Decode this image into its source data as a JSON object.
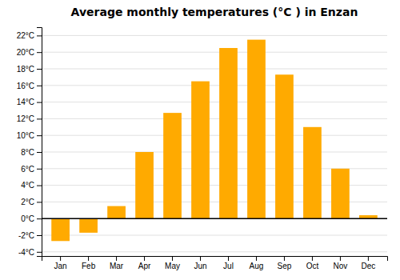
{
  "chart_data": {
    "type": "bar",
    "title": "Average monthly temperatures (°C ) in Enzan",
    "categories": [
      "Jan",
      "Feb",
      "Mar",
      "Apr",
      "May",
      "Jun",
      "Jul",
      "Aug",
      "Sep",
      "Oct",
      "Nov",
      "Dec"
    ],
    "values": [
      -2.7,
      -1.7,
      1.5,
      8.0,
      12.7,
      16.5,
      20.5,
      21.5,
      17.3,
      11.0,
      6.0,
      0.4
    ],
    "color": "#FFAA00",
    "ylim": [
      -4.5,
      23
    ],
    "yticks": [
      {
        "value": -4,
        "label": "-4°C"
      },
      {
        "value": -2,
        "label": "-2°C"
      },
      {
        "value": 0,
        "label": "0°C"
      },
      {
        "value": 2,
        "label": "2°C"
      },
      {
        "value": 4,
        "label": "4°C"
      },
      {
        "value": 6,
        "label": "6°C"
      },
      {
        "value": 8,
        "label": "8°C"
      },
      {
        "value": 10,
        "label": "10°C"
      },
      {
        "value": 12,
        "label": "12°C"
      },
      {
        "value": 14,
        "label": "14°C"
      },
      {
        "value": 16,
        "label": "16°C"
      },
      {
        "value": 18,
        "label": "18°C"
      },
      {
        "value": 20,
        "label": "20°C"
      },
      {
        "value": 22,
        "label": "22°C"
      }
    ],
    "grid": true
  }
}
